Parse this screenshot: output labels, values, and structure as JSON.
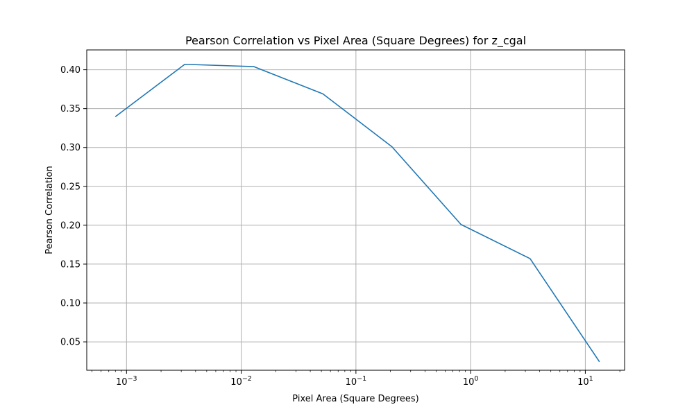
{
  "chart_data": {
    "type": "line",
    "title": "Pearson Correlation vs Pixel Area (Square Degrees) for z_cgal",
    "xlabel": "Pixel Area (Square Degrees)",
    "ylabel": "Pearson Correlation",
    "xscale": "log",
    "xlim": [
      0.00045,
      22
    ],
    "ylim": [
      0.0135,
      0.4255
    ],
    "grid": true,
    "legend": "none",
    "x_ticks": [
      {
        "base": "10",
        "exp": "−3",
        "value": 0.001
      },
      {
        "base": "10",
        "exp": "−2",
        "value": 0.01
      },
      {
        "base": "10",
        "exp": "−1",
        "value": 0.1
      },
      {
        "base": "10",
        "exp": "0",
        "value": 1
      },
      {
        "base": "10",
        "exp": "1",
        "value": 10
      }
    ],
    "y_ticks": [
      "0.05",
      "0.10",
      "0.15",
      "0.20",
      "0.25",
      "0.30",
      "0.35",
      "0.40"
    ],
    "series": [
      {
        "color": "#1f77b4",
        "x": [
          0.000805,
          0.00322,
          0.0129,
          0.0515,
          0.206,
          0.824,
          3.3,
          13.2
        ],
        "y": [
          0.34,
          0.407,
          0.404,
          0.369,
          0.301,
          0.201,
          0.157,
          0.025
        ]
      }
    ]
  }
}
